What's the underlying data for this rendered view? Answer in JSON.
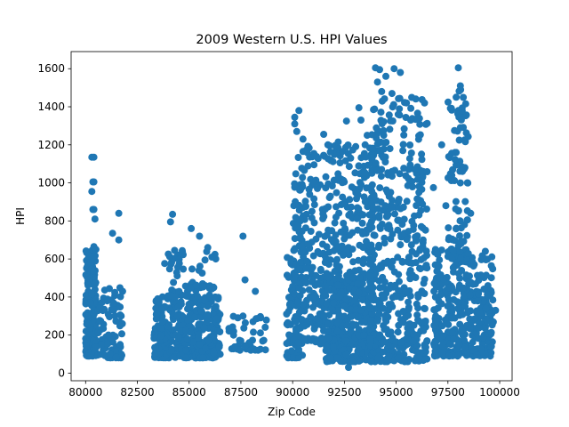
{
  "chart_data": {
    "type": "scatter",
    "title": "2009 Western U.S. HPI Values",
    "xlabel": "Zip Code",
    "ylabel": "HPI",
    "xlim": [
      79300,
      100600
    ],
    "ylim": [
      -40,
      1690
    ],
    "xticks": [
      80000,
      82500,
      85000,
      87500,
      90000,
      92500,
      95000,
      97500,
      100000
    ],
    "xtick_labels": [
      "80000",
      "82500",
      "85000",
      "87500",
      "90000",
      "92500",
      "95000",
      "97500",
      "100000"
    ],
    "yticks": [
      0,
      200,
      400,
      600,
      800,
      1000,
      1200,
      1400,
      1600
    ],
    "ytick_labels": [
      "0",
      "200",
      "400",
      "600",
      "800",
      "1000",
      "1200",
      "1400",
      "1600"
    ],
    "grid": false,
    "legend": "none",
    "marker_color": "#1f77b4",
    "clusters": [
      {
        "x_range": [
          80000,
          80500
        ],
        "y_range": [
          90,
          650
        ],
        "count": 230
      },
      {
        "x_range": [
          80500,
          81800
        ],
        "y_range": [
          80,
          450
        ],
        "count": 90
      },
      {
        "x_range": [
          83300,
          86500
        ],
        "y_range": [
          80,
          420
        ],
        "count": 400
      },
      {
        "x_range": [
          83700,
          86300
        ],
        "y_range": [
          400,
          680
        ],
        "count": 60
      },
      {
        "x_range": [
          86800,
          88800
        ],
        "y_range": [
          120,
          300
        ],
        "count": 40
      },
      {
        "x_range": [
          89700,
          90500
        ],
        "y_range": [
          80,
          620
        ],
        "count": 90
      },
      {
        "x_range": [
          90000,
          94000
        ],
        "y_range": [
          150,
          1200
        ],
        "count": 550
      },
      {
        "x_range": [
          91500,
          94000
        ],
        "y_range": [
          60,
          520
        ],
        "count": 250
      },
      {
        "x_range": [
          93700,
          96500
        ],
        "y_range": [
          60,
          1450
        ],
        "count": 480
      },
      {
        "x_range": [
          96800,
          99700
        ],
        "y_range": [
          90,
          650
        ],
        "count": 380
      },
      {
        "x_range": [
          97500,
          98500
        ],
        "y_range": [
          600,
          1500
        ],
        "count": 90
      }
    ],
    "points": [
      [
        80300,
        1135
      ],
      [
        80400,
        1135
      ],
      [
        80350,
        1005
      ],
      [
        80400,
        1005
      ],
      [
        80300,
        955
      ],
      [
        80350,
        860
      ],
      [
        80400,
        860
      ],
      [
        80450,
        810
      ],
      [
        80400,
        665
      ],
      [
        80500,
        650
      ],
      [
        81300,
        735
      ],
      [
        81600,
        840
      ],
      [
        81600,
        700
      ],
      [
        84200,
        835
      ],
      [
        84100,
        795
      ],
      [
        85100,
        760
      ],
      [
        85500,
        720
      ],
      [
        84300,
        645
      ],
      [
        85900,
        660
      ],
      [
        86100,
        610
      ],
      [
        87600,
        720
      ],
      [
        87700,
        490
      ],
      [
        88200,
        430
      ],
      [
        87600,
        300
      ],
      [
        89900,
        600
      ],
      [
        90100,
        1345
      ],
      [
        90100,
        1310
      ],
      [
        90200,
        1270
      ],
      [
        90300,
        1380
      ],
      [
        90500,
        1230
      ],
      [
        90700,
        1160
      ],
      [
        91500,
        1255
      ],
      [
        91700,
        1200
      ],
      [
        92200,
        1215
      ],
      [
        92400,
        1165
      ],
      [
        92600,
        1325
      ],
      [
        92800,
        1130
      ],
      [
        93200,
        1395
      ],
      [
        93300,
        1330
      ],
      [
        93500,
        1200
      ],
      [
        93600,
        1250
      ],
      [
        92700,
        30
      ],
      [
        94000,
        1605
      ],
      [
        94200,
        1595
      ],
      [
        94100,
        1530
      ],
      [
        94300,
        1480
      ],
      [
        94500,
        1560
      ],
      [
        94800,
        1470
      ],
      [
        94900,
        1600
      ],
      [
        95200,
        1580
      ],
      [
        95500,
        1420
      ],
      [
        95700,
        1330
      ],
      [
        94400,
        1250
      ],
      [
        94700,
        1180
      ],
      [
        95100,
        1360
      ],
      [
        95600,
        1070
      ],
      [
        95900,
        1070
      ],
      [
        96100,
        950
      ],
      [
        96300,
        700
      ],
      [
        94900,
        65
      ],
      [
        95100,
        80
      ],
      [
        97200,
        1200
      ],
      [
        98000,
        1605
      ],
      [
        98100,
        1510
      ],
      [
        97900,
        1450
      ],
      [
        98000,
        1380
      ],
      [
        98100,
        1290
      ],
      [
        98050,
        1225
      ],
      [
        97900,
        1160
      ],
      [
        98200,
        1060
      ],
      [
        98100,
        1000
      ],
      [
        96800,
        975
      ],
      [
        97400,
        880
      ],
      [
        98600,
        840
      ],
      [
        99300,
        600
      ],
      [
        99800,
        330
      ],
      [
        98900,
        95
      ],
      [
        99600,
        140
      ]
    ]
  }
}
